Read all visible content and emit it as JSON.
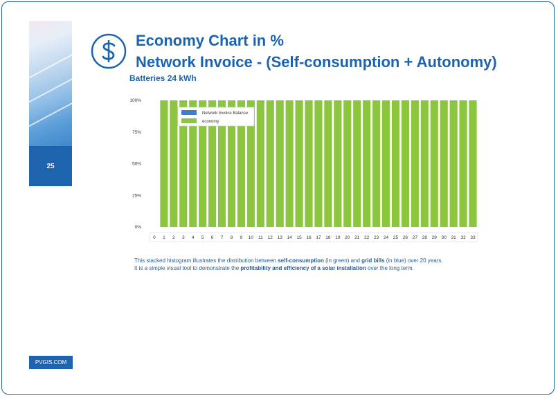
{
  "page": {
    "number": "25",
    "brand": "PVGIS.COM"
  },
  "header": {
    "title_line1": "Economy Chart in %",
    "title_line2": "Network Invoice - (Self-consumption + Autonomy)",
    "subtitle": "Batteries 24 kWh",
    "icon": "dollar-icon"
  },
  "colors": {
    "brand": "#1d63ad",
    "economy": "#8cc63f",
    "invoice": "#3a7fd0"
  },
  "chart_data": {
    "type": "bar",
    "stacked": true,
    "categories": [
      "0",
      "1",
      "2",
      "3",
      "4",
      "5",
      "6",
      "7",
      "8",
      "9",
      "10",
      "11",
      "12",
      "13",
      "14",
      "15",
      "16",
      "17",
      "18",
      "19",
      "20",
      "21",
      "22",
      "23",
      "24",
      "25",
      "26",
      "27",
      "28",
      "29",
      "30",
      "31",
      "32",
      "33"
    ],
    "series": [
      {
        "name": "Network Invoice Balance",
        "values": [
          0,
          0,
          0,
          0,
          0,
          0,
          0,
          0,
          0,
          0,
          0,
          0,
          0,
          0,
          0,
          0,
          0,
          0,
          0,
          0,
          0,
          0,
          0,
          0,
          0,
          0,
          0,
          0,
          0,
          0,
          0,
          0,
          0,
          0
        ]
      },
      {
        "name": "economy",
        "values": [
          0,
          100,
          100,
          100,
          100,
          100,
          100,
          100,
          100,
          100,
          100,
          100,
          100,
          100,
          100,
          100,
          100,
          100,
          100,
          100,
          100,
          100,
          100,
          100,
          100,
          100,
          100,
          100,
          100,
          100,
          100,
          100,
          100,
          100
        ]
      }
    ],
    "y_ticks": [
      "0%",
      "25%",
      "50%",
      "75%",
      "100%"
    ],
    "ylim": [
      0,
      100
    ],
    "legend_position": "top-left"
  },
  "caption": {
    "line1": [
      {
        "text": "This stacked histogram illustrates the distribution between ",
        "bold": false
      },
      {
        "text": "self-consumption",
        "bold": true
      },
      {
        "text": " (in green) and ",
        "bold": false
      },
      {
        "text": "grid bills",
        "bold": true
      },
      {
        "text": " (in blue) over 20 years.",
        "bold": false
      }
    ],
    "line2": [
      {
        "text": "It is a simple visual tool to demonstrate the ",
        "bold": false
      },
      {
        "text": "profitability and efficiency of a solar installation",
        "bold": true
      },
      {
        "text": " over the long term.",
        "bold": false
      }
    ]
  }
}
